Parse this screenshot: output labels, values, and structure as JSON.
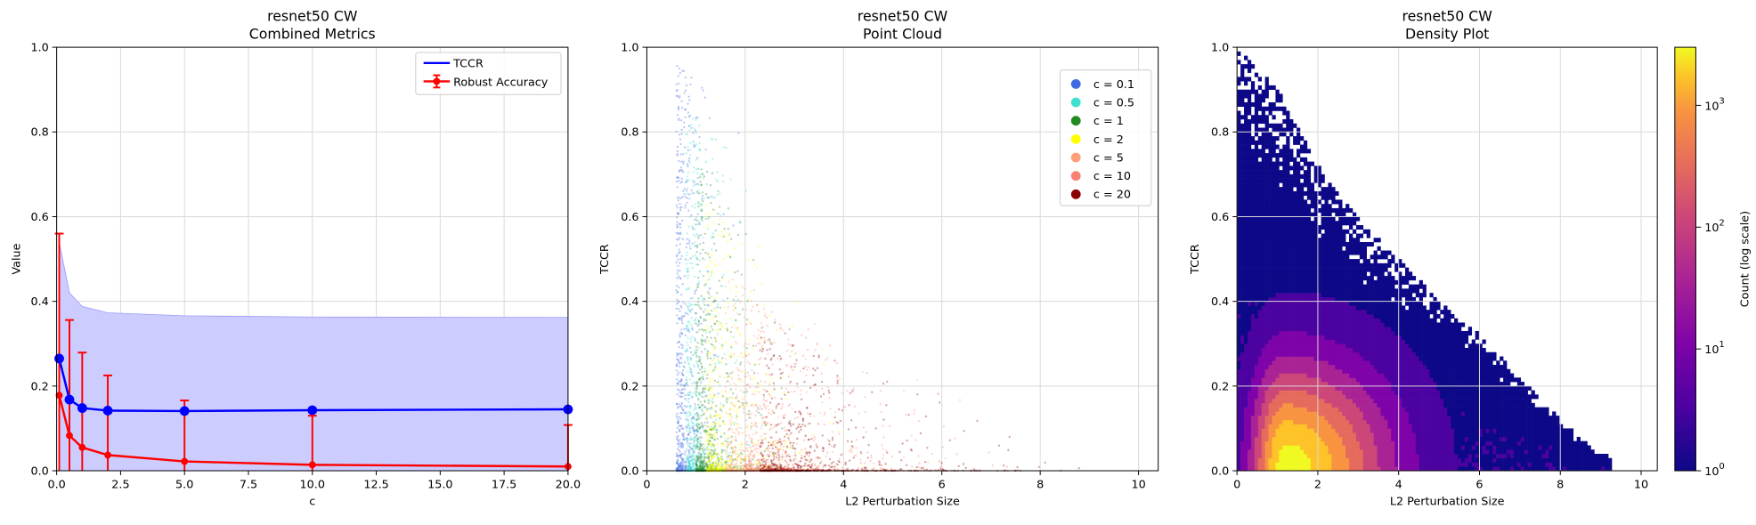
{
  "chart_data": [
    {
      "type": "line",
      "title": "resnet50 CW",
      "subtitle": "Combined Metrics",
      "xlabel": "c",
      "ylabel": "Value",
      "xlim": [
        0,
        20
      ],
      "ylim": [
        0,
        1
      ],
      "xticks": [
        "0.0",
        "2.5",
        "5.0",
        "7.5",
        "10.0",
        "12.5",
        "15.0",
        "17.5",
        "20.0"
      ],
      "yticks": [
        "0.0",
        "0.2",
        "0.4",
        "0.6",
        "0.8",
        "1.0"
      ],
      "grid": true,
      "legend_position": "top-right",
      "x": [
        0.1,
        0.5,
        1,
        2,
        5,
        10,
        20
      ],
      "series": [
        {
          "name": "TCCR",
          "color": "#0000ff",
          "values": [
            0.265,
            0.168,
            0.148,
            0.142,
            0.141,
            0.143,
            0.145
          ],
          "band_upper": [
            0.54,
            0.42,
            0.388,
            0.373,
            0.366,
            0.363,
            0.362
          ],
          "band_lower": [
            0,
            0,
            0,
            0,
            0,
            0,
            0
          ],
          "band_color": "#ccccff"
        },
        {
          "name": "Robust Accuracy",
          "color": "#ff0000",
          "values": [
            0.178,
            0.083,
            0.055,
            0.037,
            0.022,
            0.014,
            0.01
          ],
          "error_upper": [
            0.56,
            0.356,
            0.279,
            0.225,
            0.166,
            0.13,
            0.108
          ],
          "error_lower": [
            0,
            0,
            0,
            0,
            0,
            0,
            0
          ]
        }
      ]
    },
    {
      "type": "scatter",
      "title": "resnet50 CW",
      "subtitle": "Point Cloud",
      "xlabel": "L2 Perturbation Size",
      "ylabel": "TCCR",
      "xlim": [
        0,
        10.4
      ],
      "ylim": [
        0,
        1
      ],
      "xticks": [
        "0",
        "2",
        "4",
        "6",
        "8",
        "10"
      ],
      "yticks": [
        "0.0",
        "0.2",
        "0.4",
        "0.6",
        "0.8",
        "1.0"
      ],
      "grid": true,
      "legend_position": "top-right",
      "series": [
        {
          "name": "c = 0.1",
          "color": "#4169e1",
          "x_center": 0.6,
          "x_spread": 0.25,
          "y_max": 1.0
        },
        {
          "name": "c = 0.5",
          "color": "#40e0d0",
          "x_center": 0.8,
          "x_spread": 0.35,
          "y_max": 0.9
        },
        {
          "name": "c = 1",
          "color": "#228b22",
          "x_center": 1.0,
          "x_spread": 0.45,
          "y_max": 0.8
        },
        {
          "name": "c = 2",
          "color": "#ffff00",
          "x_center": 1.2,
          "x_spread": 0.6,
          "y_max": 0.7
        },
        {
          "name": "c = 5",
          "color": "#ffa07a",
          "x_center": 1.6,
          "x_spread": 1.0,
          "y_max": 0.55
        },
        {
          "name": "c = 10",
          "color": "#fa8072",
          "x_center": 2.0,
          "x_spread": 1.3,
          "y_max": 0.5
        },
        {
          "name": "c = 20",
          "color": "#8b0000",
          "x_center": 2.3,
          "x_spread": 1.5,
          "y_max": 0.45
        }
      ]
    },
    {
      "type": "heatmap",
      "title": "resnet50 CW",
      "subtitle": "Density Plot",
      "xlabel": "L2 Perturbation Size",
      "ylabel": "TCCR",
      "xlim": [
        0,
        10.4
      ],
      "ylim": [
        0,
        1
      ],
      "xticks": [
        "0",
        "2",
        "4",
        "6",
        "8",
        "10"
      ],
      "yticks": [
        "0.0",
        "0.2",
        "0.4",
        "0.6",
        "0.8",
        "1.0"
      ],
      "grid": true,
      "colormap": "plasma",
      "colorbar": {
        "label": "Count (log scale)",
        "scale": "log",
        "range": [
          1,
          3000
        ],
        "ticks": [
          {
            "base": "10",
            "exp": "0"
          },
          {
            "base": "10",
            "exp": "1"
          },
          {
            "base": "10",
            "exp": "2"
          },
          {
            "base": "10",
            "exp": "3"
          }
        ]
      },
      "density": {
        "peak_x": 1.2,
        "peak_y": 0.02,
        "max_count": 3000,
        "max_tccr_by_l2": [
          [
            0,
            1.0
          ],
          [
            1,
            0.9
          ],
          [
            2,
            0.72
          ],
          [
            3,
            0.6
          ],
          [
            4,
            0.5
          ],
          [
            5,
            0.4
          ],
          [
            6,
            0.32
          ],
          [
            7,
            0.22
          ],
          [
            8,
            0.12
          ],
          [
            9,
            0.04
          ],
          [
            10.2,
            0.0
          ]
        ]
      }
    }
  ]
}
